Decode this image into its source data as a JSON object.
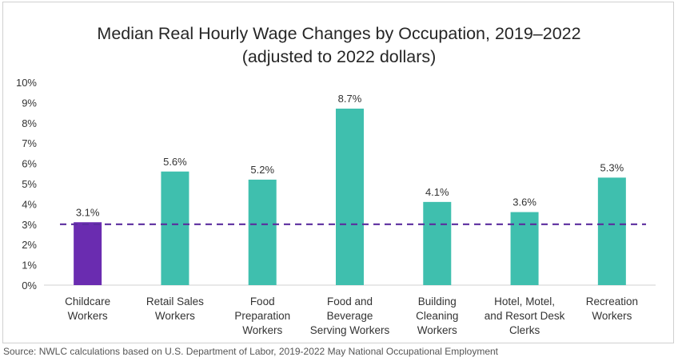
{
  "chart_data": {
    "type": "bar",
    "title_line1": "Median Real Hourly Wage Changes by Occupation, 2019–2022",
    "title_line2": "(adjusted to 2022 dollars)",
    "categories": [
      [
        "Childcare",
        "Workers"
      ],
      [
        "Retail Sales",
        "Workers"
      ],
      [
        "Food",
        "Preparation",
        "Workers"
      ],
      [
        "Food and",
        "Beverage",
        "Serving Workers"
      ],
      [
        "Building",
        "Cleaning",
        "Workers"
      ],
      [
        "Hotel, Motel,",
        "and Resort Desk",
        "Clerks"
      ],
      [
        "Recreation",
        "Workers"
      ]
    ],
    "values": [
      3.1,
      5.6,
      5.2,
      8.7,
      4.1,
      3.6,
      5.3
    ],
    "data_labels": [
      "3.1%",
      "5.6%",
      "5.2%",
      "8.7%",
      "4.1%",
      "3.6%",
      "5.3%"
    ],
    "bar_colors": [
      "#6a2cb0",
      "#3fbfae",
      "#3fbfae",
      "#3fbfae",
      "#3fbfae",
      "#3fbfae",
      "#3fbfae"
    ],
    "ylim": [
      0,
      10
    ],
    "yticks": [
      "0%",
      "1%",
      "2%",
      "3%",
      "4%",
      "5%",
      "6%",
      "7%",
      "8%",
      "9%",
      "10%"
    ],
    "reference_line": {
      "value": 3.0,
      "color": "#5b2d9e",
      "style": "dashed"
    },
    "grid": false,
    "legend": "none"
  },
  "source_note": "Source: NWLC calculations based on U.S. Department of Labor, 2019-2022 May National Occupational Employment"
}
